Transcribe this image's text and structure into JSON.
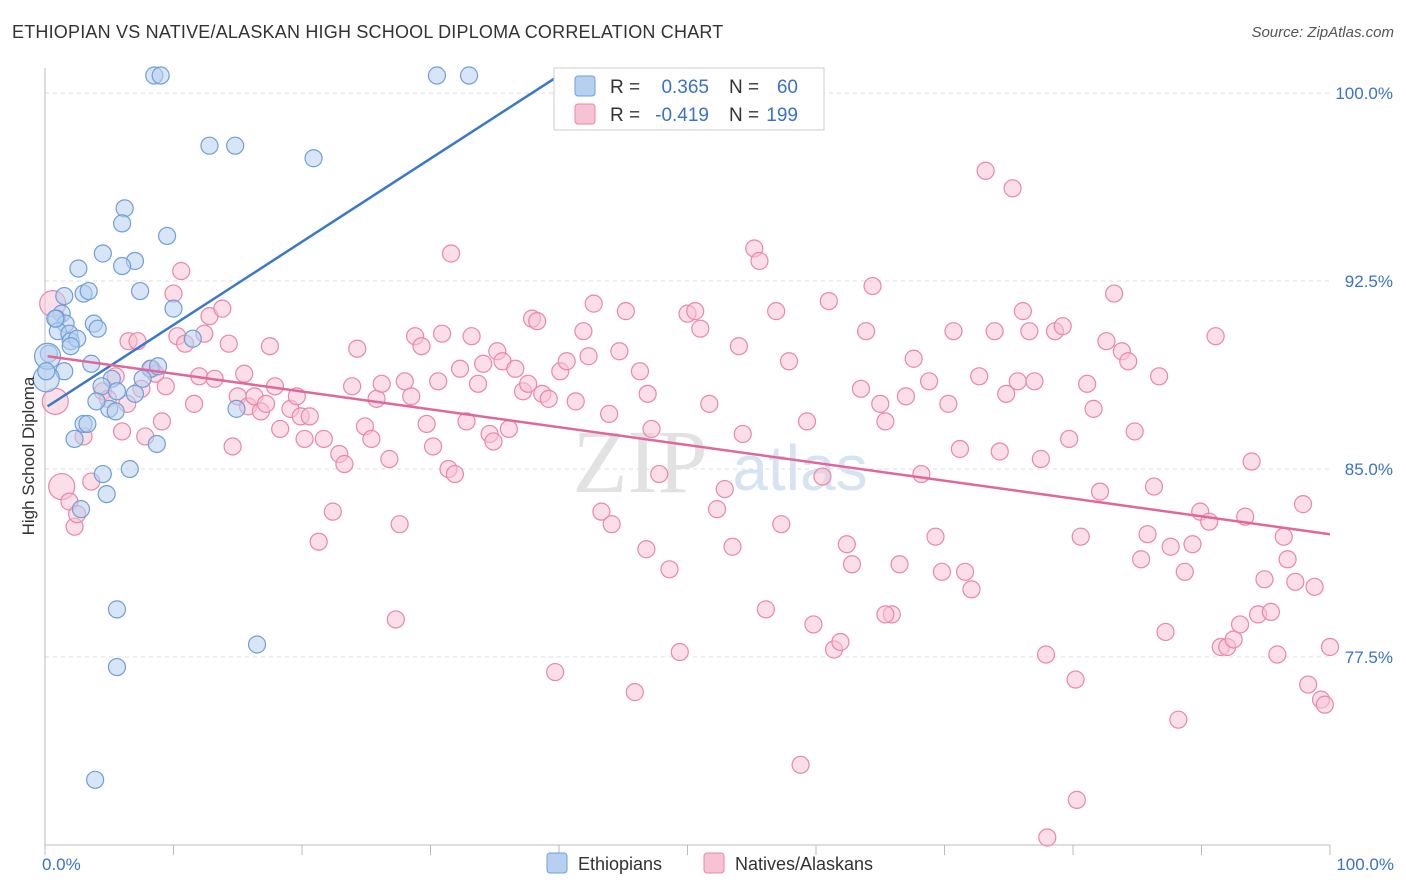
{
  "header": {
    "title": "ETHIOPIAN VS NATIVE/ALASKAN HIGH SCHOOL DIPLOMA CORRELATION CHART",
    "source": "Source: ZipAtlas.com"
  },
  "watermark": {
    "zip": "ZIP",
    "atlas": "atlas"
  },
  "legend_box": {
    "row1": {
      "r_label": "R =",
      "r_value": "0.365",
      "n_label": "N =",
      "n_value": "60"
    },
    "row2": {
      "r_label": "R =",
      "r_value": "-0.419",
      "n_label": "N =",
      "n_value": "199"
    }
  },
  "colors": {
    "ethiopian_fill": "#b8d0ef",
    "ethiopian_stroke": "#6f9fd8",
    "ethiopian_line": "#3a78cc",
    "native_fill": "#f7c3d4",
    "native_stroke": "#e987a8",
    "native_line": "#e0679a",
    "value_text": "#3a72c8",
    "grid": "#dddddd"
  },
  "chart_data": {
    "type": "scatter",
    "title": "ETHIOPIAN VS NATIVE/ALASKAN HIGH SCHOOL DIPLOMA CORRELATION CHART",
    "xlabel": "",
    "ylabel": "High School Diploma",
    "xlim": [
      0,
      100
    ],
    "ylim": [
      70.0,
      101.0
    ],
    "x_tick_labels": [
      "0.0%",
      "100.0%"
    ],
    "y_ticks": [
      77.5,
      85.0,
      92.5,
      100.0
    ],
    "y_tick_labels": [
      "77.5%",
      "85.0%",
      "92.5%",
      "100.0%"
    ],
    "grid": true,
    "legend": [
      "Ethiopians",
      "Natives/Alaskans"
    ],
    "series": [
      {
        "name": "Ethiopians",
        "r": 0.365,
        "n": 60,
        "trend": [
          [
            0.2,
            87.5
          ],
          [
            40.0,
            100.7
          ]
        ],
        "points": [
          [
            8.5,
            100.7
          ],
          [
            9.0,
            100.7
          ],
          [
            30.5,
            100.7
          ],
          [
            33.0,
            100.7
          ],
          [
            12.8,
            97.9
          ],
          [
            14.8,
            97.9
          ],
          [
            20.9,
            97.4
          ],
          [
            6.2,
            95.4
          ],
          [
            6.0,
            94.8
          ],
          [
            9.5,
            94.3
          ],
          [
            4.5,
            93.6
          ],
          [
            7.0,
            93.3
          ],
          [
            2.6,
            93.0
          ],
          [
            6.0,
            93.1
          ],
          [
            3.0,
            92.0
          ],
          [
            3.4,
            92.1
          ],
          [
            7.4,
            92.1
          ],
          [
            1.5,
            91.9
          ],
          [
            10.0,
            91.4
          ],
          [
            1.3,
            91.2
          ],
          [
            0.9,
            91.0
          ],
          [
            1.6,
            90.8
          ],
          [
            1.0,
            90.5
          ],
          [
            3.8,
            90.8
          ],
          [
            4.1,
            90.6
          ],
          [
            1.9,
            90.4
          ],
          [
            2.0,
            90.1
          ],
          [
            2.5,
            90.2
          ],
          [
            11.5,
            90.2
          ],
          [
            0.3,
            89.6
          ],
          [
            3.6,
            89.2
          ],
          [
            1.5,
            88.9
          ],
          [
            8.2,
            89.0
          ],
          [
            8.8,
            89.1
          ],
          [
            5.2,
            88.6
          ],
          [
            7.6,
            88.6
          ],
          [
            4.4,
            88.3
          ],
          [
            5.6,
            88.1
          ],
          [
            5.0,
            87.4
          ],
          [
            7.0,
            88.0
          ],
          [
            14.9,
            87.4
          ],
          [
            3.0,
            86.8
          ],
          [
            3.3,
            86.8
          ],
          [
            2.3,
            86.2
          ],
          [
            8.7,
            86.0
          ],
          [
            6.6,
            85.0
          ],
          [
            4.5,
            84.8
          ],
          [
            4.8,
            84.0
          ],
          [
            2.8,
            83.4
          ],
          [
            5.6,
            79.4
          ],
          [
            5.6,
            77.1
          ],
          [
            16.5,
            78.0
          ],
          [
            3.9,
            72.6
          ],
          [
            0.1,
            88.6
          ],
          [
            0.2,
            89.5
          ],
          [
            2.0,
            89.9
          ],
          [
            4.0,
            87.7
          ],
          [
            0.8,
            91.0
          ],
          [
            5.5,
            87.3
          ],
          [
            0.1,
            88.9
          ]
        ]
      },
      {
        "name": "Natives/Alaskans",
        "r": -0.419,
        "n": 199,
        "trend": [
          [
            0.2,
            89.5
          ],
          [
            100.0,
            82.4
          ]
        ],
        "points": [
          [
            0.6,
            91.6
          ],
          [
            0.8,
            87.7
          ],
          [
            1.3,
            84.3
          ],
          [
            1.9,
            83.7
          ],
          [
            2.3,
            82.7
          ],
          [
            2.5,
            83.2
          ],
          [
            3.0,
            86.3
          ],
          [
            3.6,
            84.5
          ],
          [
            4.5,
            88.1
          ],
          [
            4.9,
            87.8
          ],
          [
            5.5,
            88.7
          ],
          [
            6.0,
            86.5
          ],
          [
            6.4,
            87.6
          ],
          [
            6.5,
            90.1
          ],
          [
            7.2,
            90.1
          ],
          [
            7.5,
            88.2
          ],
          [
            7.8,
            86.3
          ],
          [
            8.3,
            89.0
          ],
          [
            8.6,
            88.8
          ],
          [
            9.1,
            86.9
          ],
          [
            9.4,
            88.3
          ],
          [
            10.0,
            92.0
          ],
          [
            10.3,
            90.3
          ],
          [
            10.6,
            92.9
          ],
          [
            10.9,
            90.0
          ],
          [
            11.6,
            87.6
          ],
          [
            12.0,
            88.7
          ],
          [
            12.4,
            90.4
          ],
          [
            12.8,
            91.1
          ],
          [
            13.2,
            88.6
          ],
          [
            13.8,
            91.4
          ],
          [
            14.3,
            90.0
          ],
          [
            14.6,
            85.9
          ],
          [
            15.0,
            87.9
          ],
          [
            15.5,
            88.8
          ],
          [
            15.8,
            87.5
          ],
          [
            16.3,
            87.9
          ],
          [
            16.8,
            87.3
          ],
          [
            17.2,
            87.6
          ],
          [
            17.5,
            89.9
          ],
          [
            17.9,
            88.3
          ],
          [
            18.3,
            86.6
          ],
          [
            19.1,
            87.4
          ],
          [
            19.6,
            87.9
          ],
          [
            19.9,
            87.1
          ],
          [
            20.2,
            86.2
          ],
          [
            20.6,
            87.1
          ],
          [
            21.3,
            82.1
          ],
          [
            21.7,
            86.2
          ],
          [
            22.4,
            83.3
          ],
          [
            22.9,
            85.6
          ],
          [
            23.3,
            85.2
          ],
          [
            23.9,
            88.3
          ],
          [
            24.3,
            89.8
          ],
          [
            24.9,
            86.7
          ],
          [
            25.4,
            86.2
          ],
          [
            25.8,
            87.8
          ],
          [
            26.2,
            88.4
          ],
          [
            26.8,
            85.4
          ],
          [
            27.3,
            79.0
          ],
          [
            27.6,
            82.8
          ],
          [
            28.0,
            88.5
          ],
          [
            28.5,
            87.9
          ],
          [
            28.8,
            90.3
          ],
          [
            29.3,
            89.9
          ],
          [
            29.7,
            86.8
          ],
          [
            30.2,
            85.9
          ],
          [
            30.6,
            88.5
          ],
          [
            30.9,
            90.4
          ],
          [
            31.4,
            85.0
          ],
          [
            31.6,
            93.6
          ],
          [
            31.9,
            84.8
          ],
          [
            32.3,
            89.0
          ],
          [
            32.8,
            86.9
          ],
          [
            33.2,
            90.3
          ],
          [
            33.7,
            88.4
          ],
          [
            34.1,
            89.2
          ],
          [
            34.6,
            86.4
          ],
          [
            34.9,
            86.1
          ],
          [
            35.2,
            89.7
          ],
          [
            35.6,
            89.3
          ],
          [
            36.1,
            86.6
          ],
          [
            36.6,
            89.0
          ],
          [
            37.2,
            88.1
          ],
          [
            37.6,
            88.4
          ],
          [
            37.9,
            91.0
          ],
          [
            38.3,
            90.9
          ],
          [
            38.7,
            88.0
          ],
          [
            39.2,
            87.8
          ],
          [
            39.7,
            76.9
          ],
          [
            40.1,
            88.9
          ],
          [
            40.6,
            89.3
          ],
          [
            41.3,
            87.7
          ],
          [
            41.9,
            90.5
          ],
          [
            42.3,
            89.5
          ],
          [
            42.7,
            91.6
          ],
          [
            43.3,
            83.3
          ],
          [
            43.9,
            87.2
          ],
          [
            44.1,
            82.8
          ],
          [
            44.7,
            89.7
          ],
          [
            45.2,
            91.3
          ],
          [
            45.9,
            76.1
          ],
          [
            46.3,
            88.9
          ],
          [
            46.9,
            88.0
          ],
          [
            47.2,
            86.6
          ],
          [
            47.8,
            84.8
          ],
          [
            48.6,
            81.0
          ],
          [
            49.4,
            77.7
          ],
          [
            50.0,
            91.2
          ],
          [
            50.6,
            91.3
          ],
          [
            51.0,
            90.6
          ],
          [
            51.7,
            87.6
          ],
          [
            52.3,
            83.4
          ],
          [
            52.9,
            84.2
          ],
          [
            53.5,
            81.9
          ],
          [
            54.0,
            89.9
          ],
          [
            54.3,
            86.4
          ],
          [
            55.2,
            93.8
          ],
          [
            55.6,
            93.3
          ],
          [
            56.1,
            79.4
          ],
          [
            56.9,
            91.3
          ],
          [
            57.3,
            82.8
          ],
          [
            57.9,
            89.3
          ],
          [
            58.8,
            73.2
          ],
          [
            59.3,
            86.9
          ],
          [
            59.8,
            78.8
          ],
          [
            60.5,
            84.7
          ],
          [
            61.0,
            91.7
          ],
          [
            61.4,
            77.8
          ],
          [
            61.9,
            78.1
          ],
          [
            62.4,
            82.0
          ],
          [
            62.8,
            81.2
          ],
          [
            63.5,
            88.2
          ],
          [
            63.9,
            90.5
          ],
          [
            64.4,
            92.3
          ],
          [
            65.0,
            87.6
          ],
          [
            65.4,
            86.9
          ],
          [
            65.9,
            79.2
          ],
          [
            66.5,
            81.2
          ],
          [
            67.0,
            87.9
          ],
          [
            67.6,
            89.4
          ],
          [
            68.2,
            84.8
          ],
          [
            68.8,
            88.5
          ],
          [
            69.3,
            82.3
          ],
          [
            69.8,
            80.9
          ],
          [
            70.3,
            87.6
          ],
          [
            70.7,
            90.5
          ],
          [
            71.2,
            85.8
          ],
          [
            71.6,
            80.9
          ],
          [
            72.1,
            80.2
          ],
          [
            72.7,
            88.7
          ],
          [
            73.2,
            96.9
          ],
          [
            73.9,
            90.5
          ],
          [
            74.3,
            85.7
          ],
          [
            74.8,
            88.0
          ],
          [
            75.3,
            96.2
          ],
          [
            75.7,
            88.5
          ],
          [
            76.1,
            91.3
          ],
          [
            76.6,
            90.5
          ],
          [
            77.0,
            88.5
          ],
          [
            77.5,
            85.4
          ],
          [
            77.9,
            77.6
          ],
          [
            78.6,
            90.5
          ],
          [
            79.2,
            90.7
          ],
          [
            79.7,
            86.2
          ],
          [
            80.2,
            76.6
          ],
          [
            80.6,
            82.3
          ],
          [
            81.1,
            88.4
          ],
          [
            81.6,
            87.4
          ],
          [
            82.1,
            84.1
          ],
          [
            82.6,
            90.1
          ],
          [
            83.2,
            92.0
          ],
          [
            83.8,
            89.7
          ],
          [
            84.3,
            89.3
          ],
          [
            84.8,
            86.5
          ],
          [
            85.3,
            81.4
          ],
          [
            85.8,
            82.4
          ],
          [
            86.3,
            84.3
          ],
          [
            86.7,
            88.7
          ],
          [
            87.2,
            78.5
          ],
          [
            87.6,
            81.9
          ],
          [
            88.2,
            75.0
          ],
          [
            88.7,
            80.9
          ],
          [
            89.3,
            82.0
          ],
          [
            89.9,
            83.3
          ],
          [
            90.6,
            82.9
          ],
          [
            91.1,
            90.3
          ],
          [
            91.5,
            77.9
          ],
          [
            92.0,
            77.9
          ],
          [
            92.5,
            78.2
          ],
          [
            93.0,
            78.8
          ],
          [
            93.4,
            83.1
          ],
          [
            93.9,
            85.3
          ],
          [
            94.4,
            79.2
          ],
          [
            94.9,
            80.6
          ],
          [
            95.4,
            79.3
          ],
          [
            95.9,
            77.6
          ],
          [
            96.4,
            82.3
          ],
          [
            96.7,
            81.4
          ],
          [
            97.3,
            80.5
          ],
          [
            97.9,
            83.6
          ],
          [
            98.3,
            76.4
          ],
          [
            98.8,
            80.3
          ],
          [
            99.3,
            75.8
          ],
          [
            99.6,
            75.6
          ],
          [
            100.0,
            77.9
          ],
          [
            46.8,
            81.8
          ],
          [
            65.4,
            79.2
          ],
          [
            78.0,
            70.3
          ],
          [
            80.3,
            71.8
          ]
        ]
      }
    ]
  }
}
